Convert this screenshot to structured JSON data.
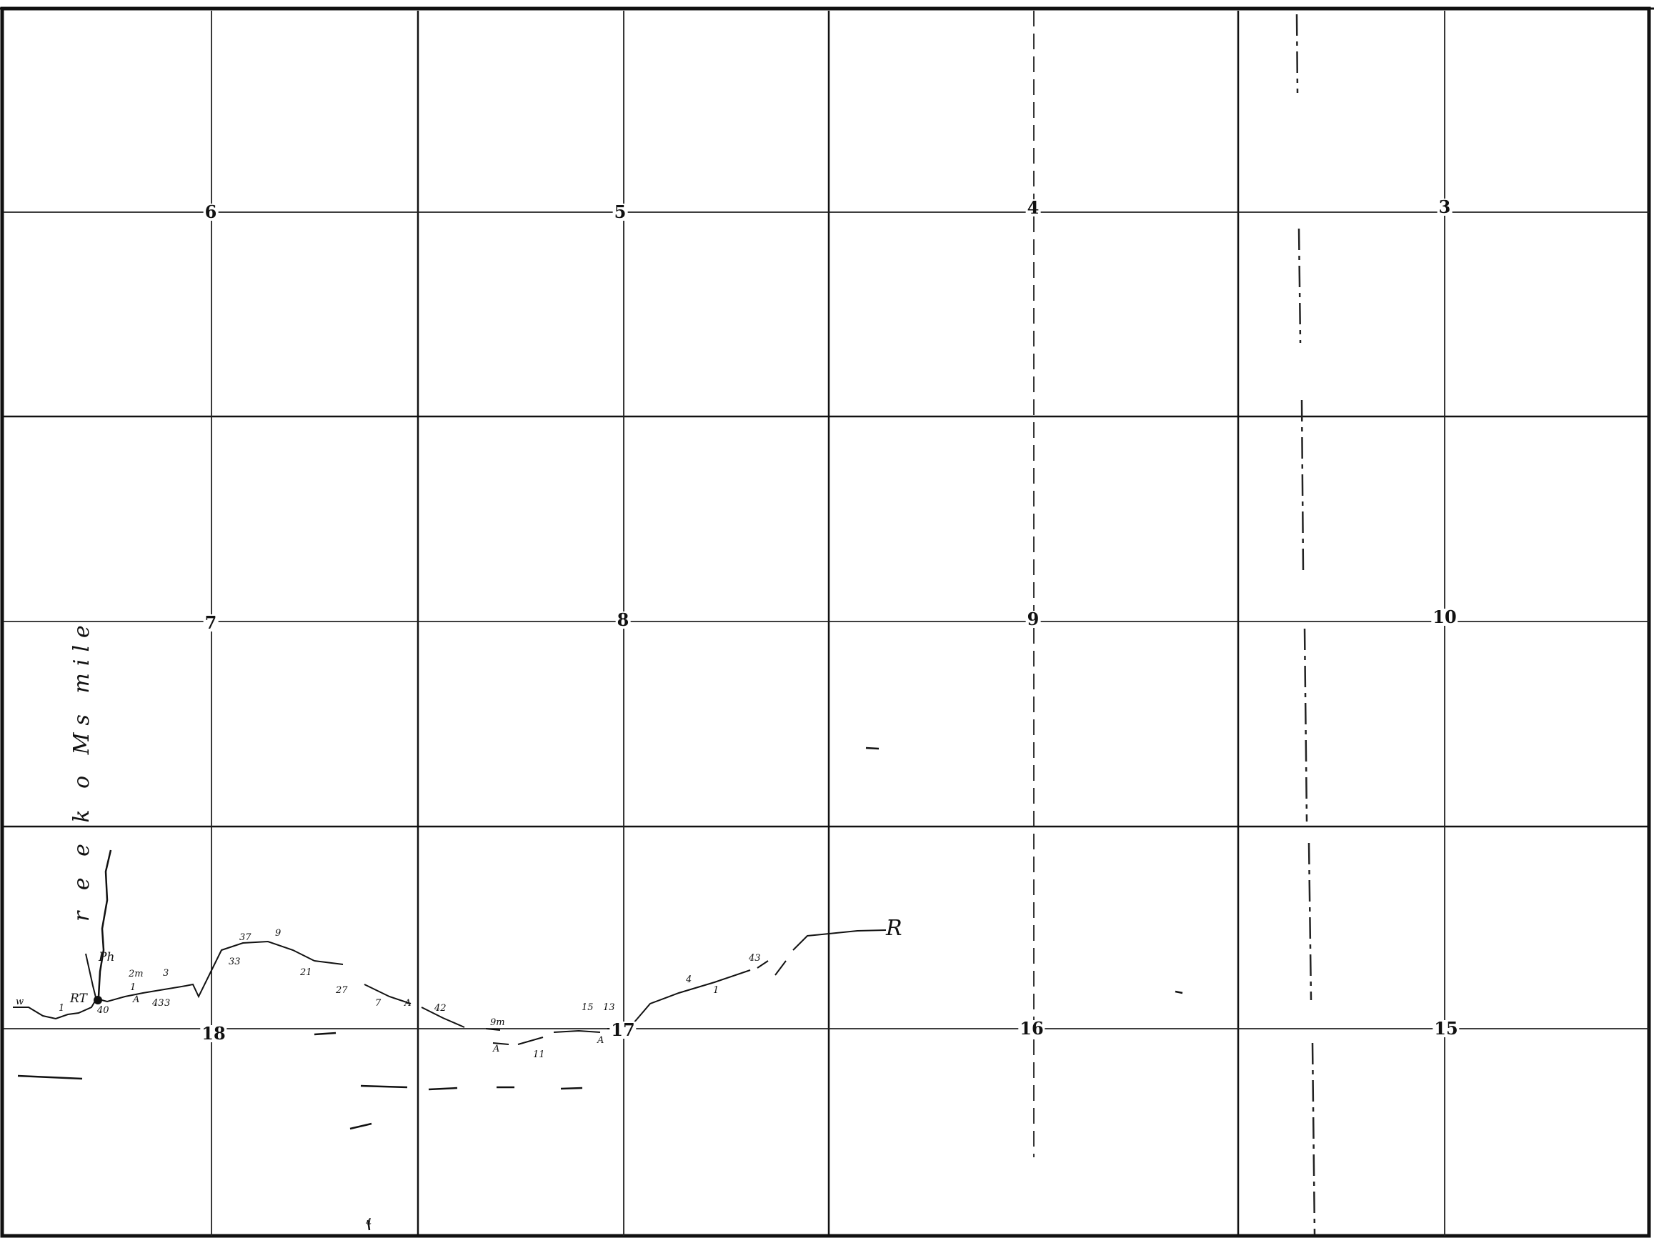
{
  "map": {
    "section_numbers": {
      "s6": "6",
      "s5": "5",
      "s4": "4",
      "s3": "3",
      "s7": "7",
      "s8": "8",
      "s9": "9",
      "s10": "10",
      "s18": "18",
      "s17": "17",
      "s16": "16",
      "s15": "15"
    },
    "annotations": {
      "creek": "r e e k  o  Ms  mile",
      "creek_prefix": "Ph",
      "range_mark": "R",
      "stake": "RT",
      "w": "w",
      "n1": "1",
      "n40": "40",
      "a1": "A",
      "n43": "43",
      "n3": "3",
      "n2m": "2m",
      "n1b": "1",
      "n3b": "3",
      "n33": "33",
      "n37": "37",
      "n9": "9",
      "n21": "21",
      "n27": "27",
      "n7": "7",
      "a2": "A",
      "n42": "42",
      "n9m": "9m",
      "n11": "11",
      "n15": "15",
      "n13": "13",
      "a3": "A",
      "n1c": "1",
      "n4": "4",
      "a4": "A",
      "n43b": "43",
      "n4b": "4"
    }
  }
}
